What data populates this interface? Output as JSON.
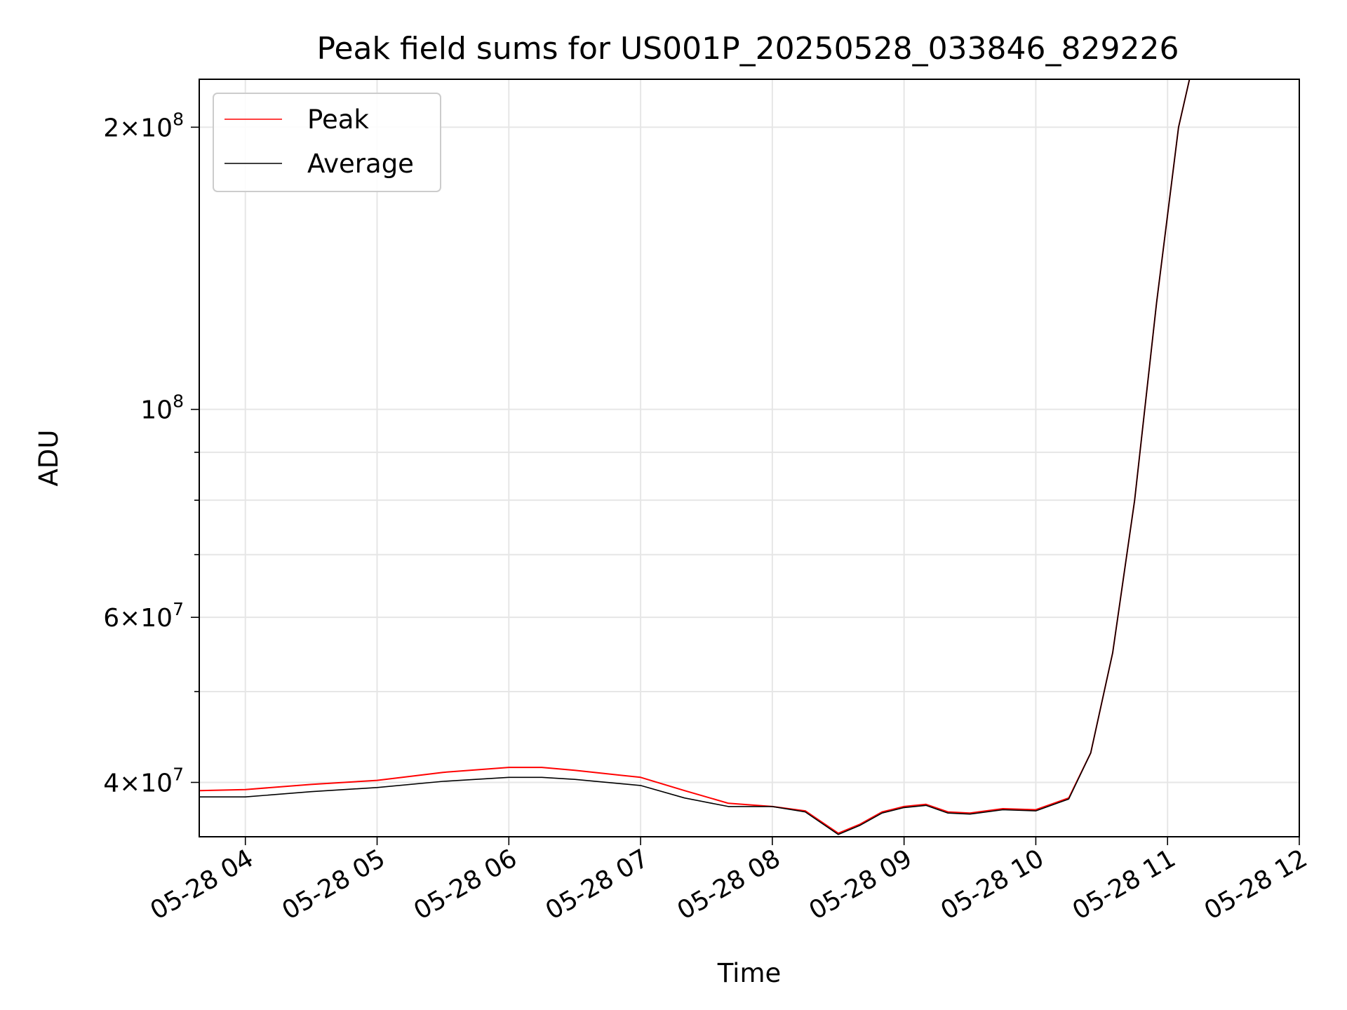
{
  "chart_data": {
    "type": "line",
    "title": "Peak field sums for US001P_20250528_033846_829226",
    "xlabel": "Time",
    "ylabel": "ADU",
    "yscale": "log",
    "grid": true,
    "legend_position": "upper-left",
    "xlim": [
      "05-28 03:39",
      "05-28 12:00"
    ],
    "ylim": [
      35000000,
      225000000
    ],
    "x_ticks": [
      "05-28 04",
      "05-28 05",
      "05-28 06",
      "05-28 07",
      "05-28 08",
      "05-28 09",
      "05-28 10",
      "05-28 11",
      "05-28 12"
    ],
    "y_ticks_major": [
      {
        "value": 40000000,
        "mant": "4",
        "exp": "7"
      },
      {
        "value": 60000000,
        "mant": "6",
        "exp": "7"
      },
      {
        "value": 100000000,
        "mant": "",
        "exp": "8"
      },
      {
        "value": 200000000,
        "mant": "2",
        "exp": "8"
      }
    ],
    "y_ticks_minor": [
      50000000,
      70000000,
      80000000,
      90000000
    ],
    "series": [
      {
        "name": "Peak",
        "color": "#ff0000",
        "x": [
          "05-28 03:39",
          "05-28 04:00",
          "05-28 04:30",
          "05-28 05:00",
          "05-28 05:30",
          "05-28 06:00",
          "05-28 06:15",
          "05-28 06:30",
          "05-28 07:00",
          "05-28 07:20",
          "05-28 07:40",
          "05-28 08:00",
          "05-28 08:15",
          "05-28 08:30",
          "05-28 08:40",
          "05-28 08:50",
          "05-28 09:00",
          "05-28 09:10",
          "05-28 09:20",
          "05-28 09:30",
          "05-28 09:45",
          "05-28 10:00",
          "05-28 10:15",
          "05-28 10:25",
          "05-28 10:35",
          "05-28 10:45",
          "05-28 10:55",
          "05-28 11:05",
          "05-28 11:10"
        ],
        "values": [
          39200000,
          39300000,
          39800000,
          40200000,
          41000000,
          41500000,
          41500000,
          41200000,
          40500000,
          39200000,
          38000000,
          37700000,
          37300000,
          35300000,
          36100000,
          37200000,
          37700000,
          37900000,
          37200000,
          37100000,
          37500000,
          37400000,
          38500000,
          43000000,
          55000000,
          80000000,
          130000000,
          200000000,
          225000000
        ]
      },
      {
        "name": "Average",
        "color": "#000000",
        "x": [
          "05-28 03:39",
          "05-28 04:00",
          "05-28 04:30",
          "05-28 05:00",
          "05-28 05:30",
          "05-28 06:00",
          "05-28 06:15",
          "05-28 06:30",
          "05-28 07:00",
          "05-28 07:20",
          "05-28 07:40",
          "05-28 08:00",
          "05-28 08:15",
          "05-28 08:30",
          "05-28 08:40",
          "05-28 08:50",
          "05-28 09:00",
          "05-28 09:10",
          "05-28 09:20",
          "05-28 09:30",
          "05-28 09:45",
          "05-28 10:00",
          "05-28 10:15",
          "05-28 10:25",
          "05-28 10:35",
          "05-28 10:45",
          "05-28 10:55",
          "05-28 11:05",
          "05-28 11:10"
        ],
        "values": [
          38600000,
          38600000,
          39100000,
          39500000,
          40100000,
          40500000,
          40500000,
          40300000,
          39700000,
          38500000,
          37700000,
          37700000,
          37200000,
          35200000,
          36000000,
          37100000,
          37600000,
          37800000,
          37100000,
          37000000,
          37400000,
          37300000,
          38400000,
          43000000,
          55000000,
          80000000,
          130000000,
          200000000,
          225000000
        ]
      }
    ]
  }
}
